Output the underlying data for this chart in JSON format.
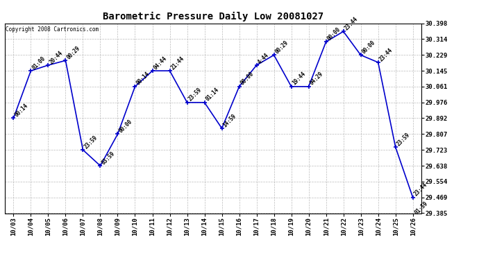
{
  "title": "Barometric Pressure Daily Low 20081027",
  "copyright": "Copyright 2008 Cartronics.com",
  "x_labels": [
    "10/03",
    "10/04",
    "10/05",
    "10/06",
    "10/07",
    "10/08",
    "10/09",
    "10/10",
    "10/11",
    "10/12",
    "10/13",
    "10/14",
    "10/15",
    "10/16",
    "10/17",
    "10/18",
    "10/19",
    "10/20",
    "10/21",
    "10/22",
    "10/23",
    "10/24",
    "10/25",
    "10/26"
  ],
  "points": [
    [
      0,
      29.892,
      "00:14"
    ],
    [
      1,
      30.145,
      "01:00"
    ],
    [
      2,
      30.175,
      "20:44"
    ],
    [
      3,
      30.2,
      "00:29"
    ],
    [
      4,
      29.723,
      "23:59"
    ],
    [
      5,
      29.638,
      "03:59"
    ],
    [
      6,
      29.807,
      "00:00"
    ],
    [
      7,
      30.061,
      "00:14"
    ],
    [
      8,
      30.145,
      "04:44"
    ],
    [
      9,
      30.145,
      "21:44"
    ],
    [
      10,
      29.976,
      "23:59"
    ],
    [
      11,
      29.976,
      "01:14"
    ],
    [
      12,
      29.838,
      "14:59"
    ],
    [
      13,
      30.061,
      "00:00"
    ],
    [
      14,
      30.175,
      "4:44"
    ],
    [
      15,
      30.229,
      "00:29"
    ],
    [
      16,
      30.061,
      "19:44"
    ],
    [
      17,
      30.061,
      "04:29"
    ],
    [
      18,
      30.3,
      "00:00"
    ],
    [
      19,
      30.355,
      "23:44"
    ],
    [
      20,
      30.229,
      "00:00"
    ],
    [
      21,
      30.19,
      "23:44"
    ],
    [
      22,
      29.738,
      "23:59"
    ],
    [
      23,
      29.469,
      "23:44"
    ]
  ],
  "extra_label": [
    23,
    29.469,
    "01:59"
  ],
  "line_color": "#0000cc",
  "marker_color": "#0000cc",
  "background_color": "#ffffff",
  "grid_color": "#aaaaaa",
  "ylim_min": 29.385,
  "ylim_max": 30.398,
  "ytick_values": [
    29.385,
    29.469,
    29.554,
    29.638,
    29.723,
    29.807,
    29.892,
    29.976,
    30.061,
    30.145,
    30.229,
    30.314,
    30.398
  ],
  "label_fontsize": 5.5,
  "title_fontsize": 10,
  "tick_fontsize": 6.5,
  "copyright_fontsize": 5.5
}
